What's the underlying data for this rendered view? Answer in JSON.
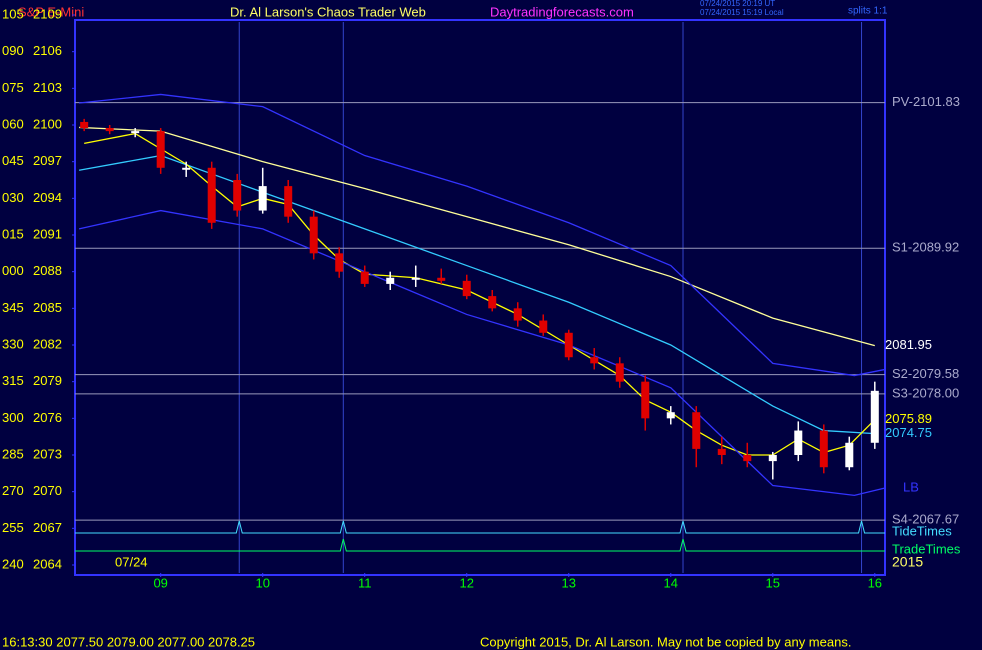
{
  "chart_data": {
    "type": "candlestick",
    "title": "Dr. Al Larson's Chaos Trader Web",
    "symbol": "S&P E-Mini",
    "site": "Daytradingforecasts.com",
    "timestamps": [
      "07/24/2015 20:19 UT",
      "07/24/2015 15:19 Local"
    ],
    "splits": "splits 1:1",
    "date_label": "07/24",
    "year_label": "2015",
    "footer_quote": "16:13:30  2077.50 2079.00 2077.00 2078.25",
    "copyright": "Copyright 2015, Dr. Al Larson. May not be copied by any means.",
    "ylim": [
      2064,
      2109
    ],
    "yticks": [
      2109,
      2106,
      2103,
      2100,
      2097,
      2094,
      2091,
      2088,
      2085,
      2082,
      2079,
      2076,
      2073,
      2070,
      2067,
      2064
    ],
    "angle_labels": [
      "105",
      "090",
      "075",
      "060",
      "045",
      "030",
      "015",
      "000",
      "345",
      "330",
      "315",
      "300",
      "285",
      "270",
      "255",
      "240"
    ],
    "xlim": [
      8.16,
      16.1
    ],
    "xticks": [
      {
        "value": 9,
        "label": "09"
      },
      10,
      11,
      12,
      13,
      14,
      15,
      16
    ],
    "x": [
      8.25,
      8.5,
      8.75,
      9.0,
      9.25,
      9.5,
      9.75,
      10.0,
      10.25,
      10.5,
      10.75,
      11.0,
      11.25,
      11.5,
      11.75,
      12.0,
      12.25,
      12.5,
      12.75,
      13.0,
      13.25,
      13.5,
      13.75,
      14.0,
      14.25,
      14.5,
      14.75,
      15.0,
      15.25,
      15.5,
      15.75,
      16.0
    ],
    "open": [
      2100.25,
      2099.75,
      2099.5,
      2099.5,
      2096.5,
      2096.5,
      2095.5,
      2093,
      2095,
      2092.5,
      2089.5,
      2088,
      2087,
      2087.5,
      2087.5,
      2087.25,
      2086,
      2085,
      2084,
      2083,
      2081,
      2080.5,
      2079,
      2076,
      2076.5,
      2073.5,
      2073,
      2072.5,
      2073,
      2075,
      2072,
      2074
    ],
    "high": [
      2100.5,
      2100,
      2099.75,
      2099.75,
      2097,
      2097,
      2096,
      2096.5,
      2095.5,
      2093,
      2090,
      2088.5,
      2088,
      2088.5,
      2088.25,
      2087.75,
      2086.5,
      2085.5,
      2084.5,
      2083.25,
      2081.75,
      2081,
      2079.5,
      2077,
      2077,
      2074.5,
      2074,
      2073.25,
      2075.75,
      2075.5,
      2074.5,
      2079
    ],
    "low": [
      2099.5,
      2099.25,
      2099,
      2096,
      2095.75,
      2091.5,
      2092.5,
      2092.75,
      2092,
      2089,
      2087.5,
      2086.75,
      2086.5,
      2086.75,
      2087,
      2085.75,
      2084.75,
      2083.5,
      2082.75,
      2080.75,
      2080,
      2078.5,
      2075,
      2075.5,
      2072,
      2072.25,
      2072,
      2071,
      2072.5,
      2071.5,
      2071.75,
      2073.5
    ],
    "close": [
      2099.75,
      2099.5,
      2099.5,
      2096.5,
      2096.5,
      2092,
      2093,
      2095,
      2092.5,
      2089.5,
      2088,
      2087,
      2087.5,
      2087.5,
      2087.25,
      2086,
      2085,
      2084,
      2083,
      2081,
      2080.5,
      2079,
      2076,
      2076.5,
      2073.5,
      2073,
      2072.5,
      2073,
      2075,
      2072,
      2074,
      2078.25
    ],
    "up_color": "#ffffff",
    "down_color": "#e00000",
    "lines": [
      {
        "color": "#ffff99",
        "end_label": "2081.95",
        "x": [
          8.2,
          9,
          10,
          11,
          12,
          13,
          14,
          15,
          16
        ],
        "values": [
          2099.8,
          2099.5,
          2097,
          2094.8,
          2092.5,
          2090.2,
          2087.6,
          2084.2,
          2081.95
        ]
      },
      {
        "color": "#33ccff",
        "end_label": "2074.75",
        "x": [
          8.2,
          9,
          10,
          11,
          12,
          13,
          14,
          15,
          15.5,
          16
        ],
        "values": [
          2096.3,
          2097.5,
          2094.5,
          2091.5,
          2088.5,
          2085.5,
          2082,
          2077,
          2075,
          2074.75
        ]
      },
      {
        "color": "#ffff00",
        "end_label": "2075.89",
        "x": [
          8.25,
          8.75,
          9.25,
          9.5,
          9.75,
          10.0,
          10.25,
          10.5,
          10.75,
          11.0,
          11.5,
          12.0,
          12.5,
          13.0,
          13.5,
          13.75,
          14.0,
          14.25,
          14.5,
          14.75,
          15.0,
          15.25,
          15.5,
          15.75,
          16.0
        ],
        "values": [
          2098.5,
          2099.3,
          2096.8,
          2095,
          2093.3,
          2094,
          2093.5,
          2091,
          2089,
          2087.8,
          2087.5,
          2086.5,
          2084.5,
          2082,
          2079.5,
          2077.5,
          2076.5,
          2075,
          2073.8,
          2073,
          2073,
          2074.3,
          2073.2,
          2073.8,
          2075.89
        ]
      },
      {
        "color": "#3333ff",
        "end_label": "LB",
        "x": [
          8.2,
          9,
          10,
          11,
          12,
          13,
          14,
          15,
          15.8,
          16.1
        ],
        "values": [
          2091.5,
          2093,
          2091.5,
          2088,
          2084.5,
          2082,
          2078.5,
          2070.5,
          2069.7,
          2070.3
        ]
      },
      {
        "color": "#3333ff",
        "x": [
          8.2,
          9,
          10,
          11,
          12,
          13,
          14,
          15,
          15.8,
          16.1
        ],
        "values": [
          2101.8,
          2102.5,
          2101.5,
          2097.5,
          2095,
          2092,
          2088.5,
          2080.5,
          2079.5,
          2080
        ]
      }
    ],
    "levels": [
      {
        "label": "PV-2101.83",
        "value": 2101.83
      },
      {
        "label": "S1-2089.92",
        "value": 2089.92
      },
      {
        "label": "S2-2079.58",
        "value": 2079.58
      },
      {
        "label": "S3-2078.00",
        "value": 2078.0
      },
      {
        "label": "S4-2067.67",
        "value": 2067.67
      }
    ],
    "tide_label": "TideTimes",
    "tide_times": [
      9.77,
      10.79,
      14.12,
      15.87
    ],
    "trade_label": "TradeTimes",
    "trade_times": [
      10.79,
      14.12
    ]
  }
}
